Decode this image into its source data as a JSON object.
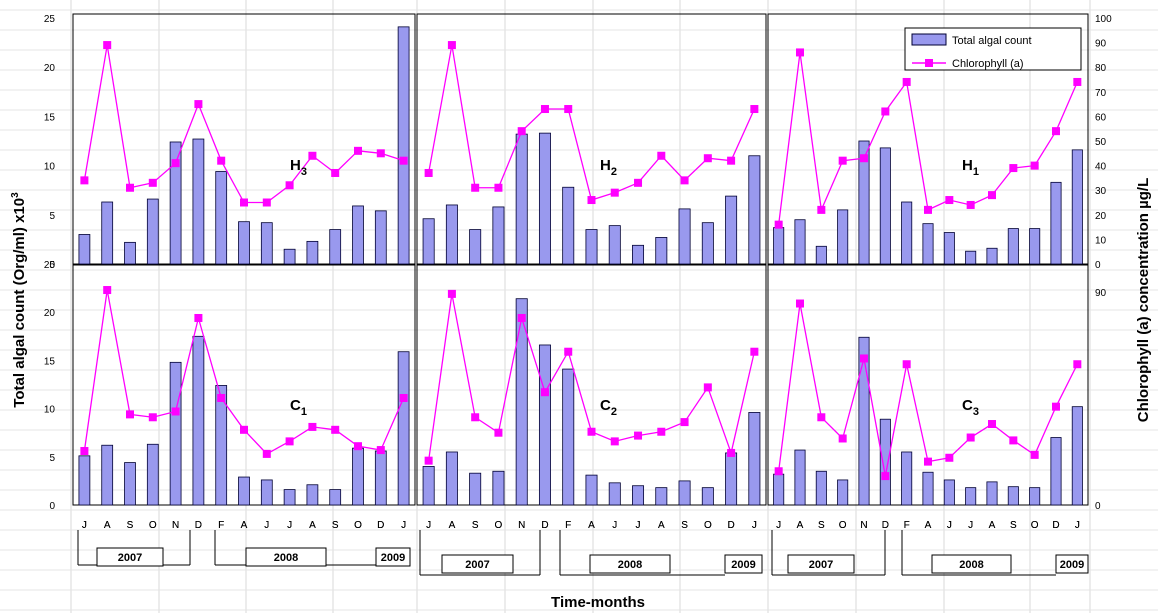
{
  "chart_data": {
    "type": "bar",
    "months": [
      "J",
      "A",
      "S",
      "O",
      "N",
      "D",
      "F",
      "A",
      "J",
      "J",
      "A",
      "S",
      "O",
      "D",
      "J"
    ],
    "years": [
      "2007",
      "2008",
      "2009"
    ],
    "xlabel": "Time-months",
    "ylabel_left": "Total algal count (Org/ml) x10",
    "ylabel_left_sup": "3",
    "ylabel_right": "Chlorophyll (a) concentration µg/L",
    "left_ticks": [
      "0",
      "5",
      "10",
      "15",
      "20",
      "25"
    ],
    "right_ticks": [
      "0",
      "10",
      "20",
      "30",
      "40",
      "50",
      "60",
      "70",
      "80",
      "90",
      "100"
    ],
    "bottom_left_ticks": [
      "0",
      "5",
      "10",
      "15",
      "20",
      "25"
    ],
    "bottom_right_ticks": [
      "0",
      "90"
    ],
    "legend": [
      "Total algal count",
      "Chlorophyll (a)"
    ],
    "colors": {
      "bar": "#9999ee",
      "bar_edge": "#000033",
      "line": "#ff00ff"
    },
    "left_ylim": [
      0,
      25
    ],
    "right_ylim": [
      0,
      100
    ],
    "panels": [
      {
        "label": "H",
        "sub": "3",
        "bars": [
          3,
          6.3,
          2.2,
          6.6,
          12.4,
          12.7,
          9.4,
          4.3,
          4.2,
          1.5,
          2.3,
          3.5,
          5.9,
          5.4,
          24.1
        ],
        "chl": [
          34,
          89,
          31,
          33,
          41,
          65,
          42,
          25,
          25,
          32,
          44,
          37,
          46,
          45,
          42
        ]
      },
      {
        "label": "H",
        "sub": "2",
        "bars": [
          4.6,
          6,
          3.5,
          5.8,
          13.2,
          13.3,
          7.8,
          3.5,
          3.9,
          1.9,
          2.7,
          5.6,
          4.2,
          6.9,
          11
        ],
        "chl": [
          37,
          89,
          31,
          31,
          54,
          63,
          63,
          26,
          29,
          33,
          44,
          34,
          43,
          42,
          63
        ]
      },
      {
        "label": "H",
        "sub": "1",
        "bars": [
          3.7,
          4.5,
          1.8,
          5.5,
          12.5,
          11.8,
          6.3,
          4.1,
          3.2,
          1.3,
          1.6,
          3.6,
          3.6,
          8.3,
          11.6
        ],
        "chl": [
          16,
          86,
          22,
          42,
          43,
          62,
          74,
          22,
          26,
          24,
          28,
          39,
          40,
          54,
          74
        ]
      },
      {
        "label": "C",
        "sub": "1",
        "bars": [
          5.1,
          6.2,
          4.4,
          6.3,
          14.8,
          17.5,
          12.4,
          2.9,
          2.6,
          1.6,
          2.1,
          1.6,
          5.9,
          5.6,
          15.9
        ],
        "chl": [
          5.6,
          22.3,
          9.4,
          9.1,
          9.7,
          19.4,
          11.1,
          7.8,
          5.3,
          6.6,
          8.1,
          7.8,
          6.1,
          5.7,
          11.1
        ]
      },
      {
        "label": "C",
        "sub": "2",
        "bars": [
          4,
          5.5,
          3.3,
          3.5,
          21.4,
          16.6,
          14.1,
          3.1,
          2.3,
          2,
          1.8,
          2.5,
          1.8,
          5.4,
          9.6
        ],
        "chl": [
          4.6,
          21.9,
          9.1,
          7.5,
          19.4,
          11.7,
          15.9,
          7.6,
          6.6,
          7.2,
          7.6,
          8.6,
          12.2,
          5.4,
          15.9
        ]
      },
      {
        "label": "C",
        "sub": "3",
        "bars": [
          3.2,
          5.7,
          3.5,
          2.6,
          17.4,
          8.9,
          5.5,
          3.4,
          2.6,
          1.8,
          2.4,
          1.9,
          1.8,
          7,
          10.2
        ],
        "chl": [
          3.5,
          20.9,
          9.1,
          6.9,
          15.2,
          3,
          14.6,
          4.5,
          4.9,
          7,
          8.4,
          6.7,
          5.2,
          10.2,
          14.6
        ]
      }
    ]
  }
}
